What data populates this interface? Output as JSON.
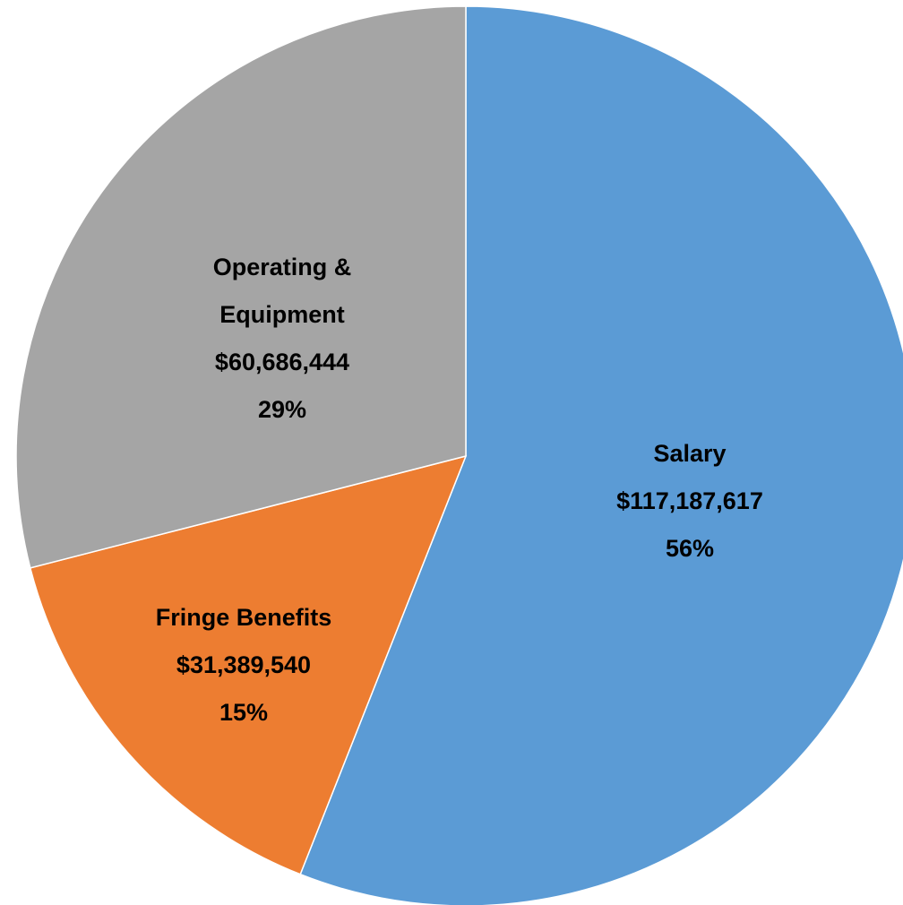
{
  "chart_data": {
    "type": "pie",
    "categories": [
      "Salary",
      "Fringe Benefits",
      "Operating & Equipment"
    ],
    "values": [
      117187617,
      31389540,
      60686444
    ],
    "value_labels": [
      "$117,187,617",
      "$31,389,540",
      "$60,686,444"
    ],
    "percent_labels": [
      "56%",
      "15%",
      "29%"
    ],
    "colors": [
      "#5b9bd5",
      "#ed7d31",
      "#a5a5a5"
    ]
  }
}
